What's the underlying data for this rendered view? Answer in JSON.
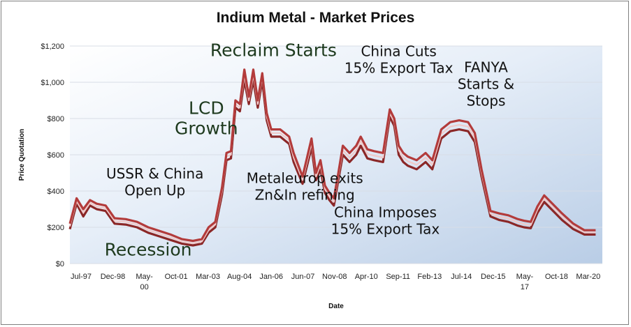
{
  "chart_data": {
    "type": "line",
    "title": "Indium Metal - Market Prices",
    "xlabel": "Date",
    "ylabel": "Price Quotation",
    "ylim": [
      0,
      1200
    ],
    "yticks": [
      "$0",
      "$200",
      "$400",
      "$600",
      "$800",
      "$1,000",
      "$1,200"
    ],
    "yticks_values": [
      0,
      200,
      400,
      600,
      800,
      1000,
      1200
    ],
    "xticks": [
      {
        "t": 1997.5,
        "label": "Jul-97"
      },
      {
        "t": 1998.92,
        "label": "Dec-98"
      },
      {
        "t": 2000.33,
        "label": "May-\n00"
      },
      {
        "t": 2001.75,
        "label": "Oct-01"
      },
      {
        "t": 2003.17,
        "label": "Mar-03"
      },
      {
        "t": 2004.58,
        "label": "Aug-04"
      },
      {
        "t": 2006.0,
        "label": "Jan-06"
      },
      {
        "t": 2007.42,
        "label": "Jun-07"
      },
      {
        "t": 2008.83,
        "label": "Nov-08"
      },
      {
        "t": 2010.25,
        "label": "Apr-10"
      },
      {
        "t": 2011.67,
        "label": "Sep-11"
      },
      {
        "t": 2013.08,
        "label": "Feb-13"
      },
      {
        "t": 2014.5,
        "label": "Jul-14"
      },
      {
        "t": 2015.92,
        "label": "Dec-15"
      },
      {
        "t": 2017.33,
        "label": "May-\n17"
      },
      {
        "t": 2018.75,
        "label": "Oct-18"
      },
      {
        "t": 2020.17,
        "label": "Mar-20"
      }
    ],
    "xlim": [
      1997.0,
      2020.8
    ],
    "series": [
      {
        "x": [
          1997.0,
          1997.3,
          1997.6,
          1997.9,
          1998.2,
          1998.6,
          1999.0,
          1999.5,
          2000.0,
          2000.5,
          2001.0,
          2001.5,
          2002.0,
          2002.5,
          2002.9,
          2003.2,
          2003.5,
          2003.8,
          2004.0,
          2004.2,
          2004.4,
          2004.6,
          2004.8,
          2005.0,
          2005.2,
          2005.4,
          2005.6,
          2005.8,
          2006.0,
          2006.2,
          2006.4,
          2006.6,
          2006.8,
          2007.0,
          2007.4,
          2007.8,
          2008.0,
          2008.2,
          2008.4,
          2008.6,
          2008.8,
          2009.0,
          2009.2,
          2009.5,
          2009.8,
          2010.0,
          2010.3,
          2010.6,
          2011.0,
          2011.3,
          2011.5,
          2011.7,
          2011.9,
          2012.1,
          2012.5,
          2012.9,
          2013.2,
          2013.6,
          2014.0,
          2014.4,
          2014.8,
          2015.1,
          2015.4,
          2015.8,
          2016.2,
          2016.6,
          2017.0,
          2017.3,
          2017.6,
          2017.9,
          2018.2,
          2018.6,
          2019.0,
          2019.5,
          2020.0,
          2020.5
        ],
        "values": [
          190,
          330,
          260,
          320,
          300,
          290,
          220,
          215,
          200,
          170,
          150,
          130,
          110,
          100,
          110,
          170,
          200,
          380,
          570,
          580,
          860,
          840,
          1010,
          880,
          1010,
          860,
          1010,
          790,
          700,
          700,
          700,
          680,
          660,
          560,
          440,
          640,
          460,
          520,
          390,
          350,
          320,
          460,
          600,
          560,
          600,
          650,
          580,
          570,
          560,
          810,
          760,
          600,
          560,
          540,
          520,
          560,
          520,
          690,
          730,
          740,
          730,
          670,
          480,
          260,
          240,
          230,
          210,
          200,
          195,
          280,
          340,
          290,
          240,
          190,
          160,
          160
        ]
      },
      {
        "x": [
          1997.0,
          1997.3,
          1997.6,
          1997.9,
          1998.2,
          1998.6,
          1999.0,
          1999.5,
          2000.0,
          2000.5,
          2001.0,
          2001.5,
          2002.0,
          2002.5,
          2002.9,
          2003.2,
          2003.5,
          2003.8,
          2004.0,
          2004.2,
          2004.4,
          2004.6,
          2004.8,
          2005.0,
          2005.2,
          2005.4,
          2005.6,
          2005.8,
          2006.0,
          2006.2,
          2006.4,
          2006.6,
          2006.8,
          2007.0,
          2007.4,
          2007.8,
          2008.0,
          2008.2,
          2008.4,
          2008.6,
          2008.8,
          2009.0,
          2009.2,
          2009.5,
          2009.8,
          2010.0,
          2010.3,
          2010.6,
          2011.0,
          2011.3,
          2011.5,
          2011.7,
          2011.9,
          2012.1,
          2012.5,
          2012.9,
          2013.2,
          2013.6,
          2014.0,
          2014.4,
          2014.8,
          2015.1,
          2015.4,
          2015.8,
          2016.2,
          2016.6,
          2017.0,
          2017.3,
          2017.6,
          2017.9,
          2018.2,
          2018.6,
          2019.0,
          2019.5,
          2020.0,
          2020.5
        ],
        "values": [
          205,
          345,
          280,
          335,
          315,
          305,
          235,
          230,
          215,
          185,
          165,
          145,
          122,
          112,
          122,
          185,
          215,
          400,
          590,
          600,
          880,
          860,
          1040,
          900,
          1040,
          880,
          1030,
          810,
          720,
          720,
          720,
          700,
          680,
          585,
          460,
          665,
          480,
          545,
          410,
          370,
          340,
          480,
          625,
          585,
          625,
          675,
          605,
          595,
          585,
          830,
          780,
          625,
          585,
          565,
          545,
          585,
          545,
          715,
          755,
          765,
          755,
          695,
          500,
          275,
          258,
          248,
          228,
          218,
          212,
          298,
          358,
          308,
          258,
          205,
          172,
          172
        ]
      },
      {
        "x": [
          1997.0,
          1997.3,
          1997.6,
          1997.9,
          1998.2,
          1998.6,
          1999.0,
          1999.5,
          2000.0,
          2000.5,
          2001.0,
          2001.5,
          2002.0,
          2002.5,
          2002.9,
          2003.2,
          2003.5,
          2003.8,
          2004.0,
          2004.2,
          2004.4,
          2004.6,
          2004.8,
          2005.0,
          2005.2,
          2005.4,
          2005.6,
          2005.8,
          2006.0,
          2006.2,
          2006.4,
          2006.6,
          2006.8,
          2007.0,
          2007.4,
          2007.8,
          2008.0,
          2008.2,
          2008.4,
          2008.6,
          2008.8,
          2009.0,
          2009.2,
          2009.5,
          2009.8,
          2010.0,
          2010.3,
          2010.6,
          2011.0,
          2011.3,
          2011.5,
          2011.7,
          2011.9,
          2012.1,
          2012.5,
          2012.9,
          2013.2,
          2013.6,
          2014.0,
          2014.4,
          2014.8,
          2015.1,
          2015.4,
          2015.8,
          2016.2,
          2016.6,
          2017.0,
          2017.3,
          2017.6,
          2017.9,
          2018.2,
          2018.6,
          2019.0,
          2019.5,
          2020.0,
          2020.5
        ],
        "values": [
          220,
          360,
          300,
          350,
          330,
          320,
          250,
          245,
          230,
          200,
          180,
          160,
          135,
          125,
          135,
          200,
          230,
          420,
          610,
          620,
          900,
          880,
          1070,
          920,
          1070,
          900,
          1050,
          830,
          740,
          740,
          740,
          720,
          700,
          610,
          480,
          690,
          500,
          570,
          430,
          390,
          360,
          500,
          650,
          610,
          650,
          700,
          630,
          620,
          610,
          850,
          800,
          650,
          610,
          590,
          570,
          610,
          570,
          740,
          780,
          790,
          780,
          720,
          520,
          290,
          276,
          266,
          246,
          236,
          230,
          316,
          376,
          326,
          276,
          220,
          184,
          184
        ]
      }
    ],
    "annotations": [
      {
        "t": 2000.8,
        "v": 470,
        "lines": [
          "USSR & China",
          "Open Up"
        ],
        "green": false
      },
      {
        "t": 2000.5,
        "v": 45,
        "lines": [
          "Recession"
        ],
        "green": true
      },
      {
        "t": 2003.1,
        "v": 825,
        "lines": [
          "LCD",
          "Growth"
        ],
        "green": true
      },
      {
        "t": 2006.1,
        "v": 1145,
        "lines": [
          "Reclaim Starts"
        ],
        "green": true
      },
      {
        "t": 2007.5,
        "v": 445,
        "lines": [
          "Metaleurop exits",
          "Zn&In refining"
        ],
        "green": false
      },
      {
        "t": 2011.7,
        "v": 1145,
        "lines": [
          "China Cuts",
          "15% Export Tax"
        ],
        "green": false
      },
      {
        "t": 2015.6,
        "v": 1055,
        "lines": [
          "FANYA",
          "Starts &",
          "Stops"
        ],
        "green": false
      },
      {
        "t": 2011.1,
        "v": 255,
        "lines": [
          "China Imposes",
          "15% Export Tax"
        ],
        "green": false
      }
    ]
  }
}
